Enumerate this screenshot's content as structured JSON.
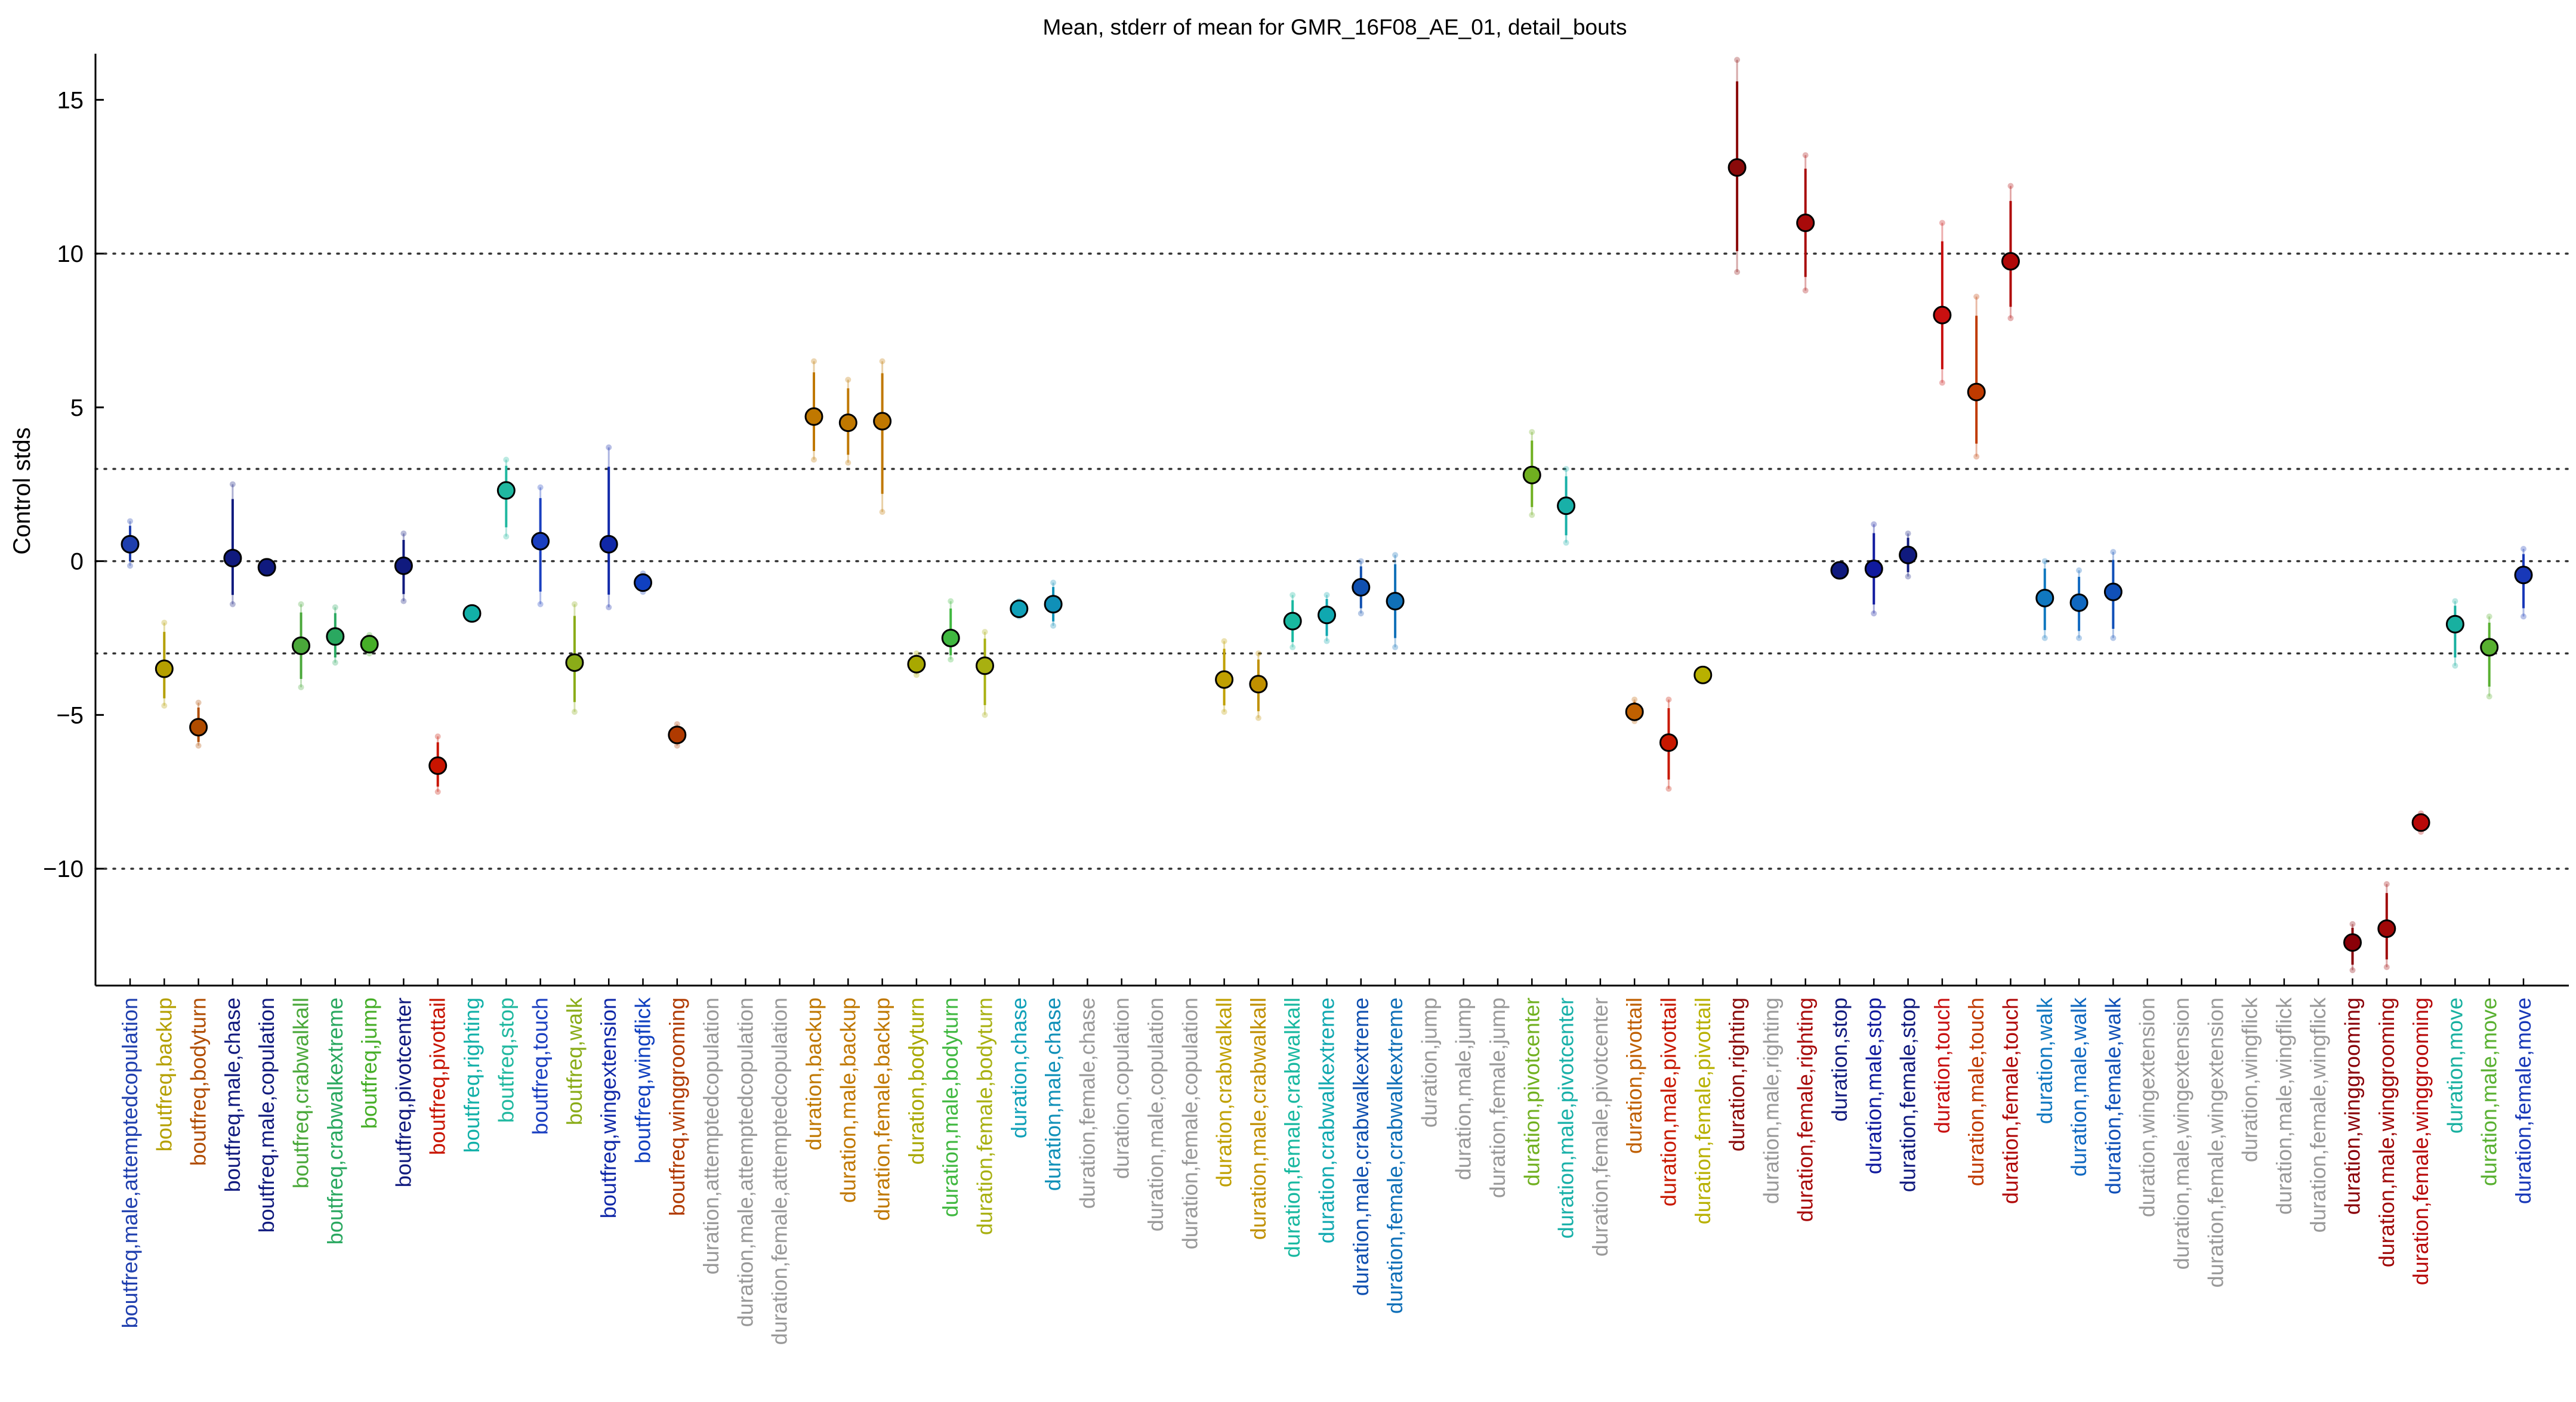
{
  "chart_data": {
    "type": "scatter",
    "title": "Mean, stderr of mean for GMR_16F08_AE_01, detail_bouts",
    "xlabel": "",
    "ylabel": "Control stds",
    "ylim": [
      -13.8,
      16.5
    ],
    "yticks": [
      -10,
      -5,
      0,
      5,
      10,
      15
    ],
    "reference_lines": [
      -10,
      -3,
      0,
      3,
      10
    ],
    "grid": false,
    "categories": [
      {
        "label": "boutfreq,male,attemptedcopulation",
        "color": "#1f3fae",
        "mean": 0.55,
        "lo": -0.15,
        "hi": 1.3
      },
      {
        "label": "boutfreq,backup",
        "color": "#b5a000",
        "mean": -3.5,
        "lo": -4.7,
        "hi": -2.0
      },
      {
        "label": "boutfreq,bodyturn",
        "color": "#b04c00",
        "mean": -5.4,
        "lo": -6.0,
        "hi": -4.6
      },
      {
        "label": "boutfreq,male,chase",
        "color": "#101a7e",
        "mean": 0.1,
        "lo": -1.4,
        "hi": 2.5
      },
      {
        "label": "boutfreq,male,copulation",
        "color": "#101a7e",
        "mean": -0.2,
        "lo": -0.4,
        "hi": 0.0
      },
      {
        "label": "boutfreq,crabwalkall",
        "color": "#4aa83a",
        "mean": -2.75,
        "lo": -4.1,
        "hi": -1.4
      },
      {
        "label": "boutfreq,crabwalkextreme",
        "color": "#2aa860",
        "mean": -2.45,
        "lo": -3.3,
        "hi": -1.5
      },
      {
        "label": "boutfreq,jump",
        "color": "#46ae28",
        "mean": -2.7,
        "lo": -3.0,
        "hi": -2.4
      },
      {
        "label": "boutfreq,pivotcenter",
        "color": "#101a7e",
        "mean": -0.15,
        "lo": -1.3,
        "hi": 0.9
      },
      {
        "label": "boutfreq,pivottail",
        "color": "#c81400",
        "mean": -6.65,
        "lo": -7.5,
        "hi": -5.7
      },
      {
        "label": "boutfreq,righting",
        "color": "#12b0a8",
        "mean": -1.7,
        "lo": -1.9,
        "hi": -1.5
      },
      {
        "label": "boutfreq,stop",
        "color": "#20b8a0",
        "mean": 2.3,
        "lo": 0.8,
        "hi": 3.3
      },
      {
        "label": "boutfreq,touch",
        "color": "#1a3fc0",
        "mean": 0.65,
        "lo": -1.4,
        "hi": 2.4
      },
      {
        "label": "boutfreq,walk",
        "color": "#8aac18",
        "mean": -3.3,
        "lo": -4.9,
        "hi": -1.4
      },
      {
        "label": "boutfreq,wingextension",
        "color": "#1028a8",
        "mean": 0.55,
        "lo": -1.5,
        "hi": 3.7
      },
      {
        "label": "boutfreq,wingflick",
        "color": "#1040c0",
        "mean": -0.7,
        "lo": -1.0,
        "hi": -0.4
      },
      {
        "label": "boutfreq,winggrooming",
        "color": "#b03a00",
        "mean": -5.65,
        "lo": -6.0,
        "hi": -5.3
      },
      {
        "label": "duration,attemptedcopulation",
        "color": "#999999",
        "mean": null,
        "lo": null,
        "hi": null
      },
      {
        "label": "duration,male,attemptedcopulation",
        "color": "#999999",
        "mean": null,
        "lo": null,
        "hi": null
      },
      {
        "label": "duration,female,attemptedcopulation",
        "color": "#999999",
        "mean": null,
        "lo": null,
        "hi": null
      },
      {
        "label": "duration,backup",
        "color": "#c07800",
        "mean": 4.7,
        "lo": 3.3,
        "hi": 6.5
      },
      {
        "label": "duration,male,backup",
        "color": "#c07800",
        "mean": 4.5,
        "lo": 3.2,
        "hi": 5.9
      },
      {
        "label": "duration,female,backup",
        "color": "#c07800",
        "mean": 4.55,
        "lo": 1.6,
        "hi": 6.5
      },
      {
        "label": "duration,bodyturn",
        "color": "#a8a800",
        "mean": -3.35,
        "lo": -3.7,
        "hi": -3.0
      },
      {
        "label": "duration,male,bodyturn",
        "color": "#40b840",
        "mean": -2.5,
        "lo": -3.2,
        "hi": -1.3
      },
      {
        "label": "duration,female,bodyturn",
        "color": "#a8b010",
        "mean": -3.4,
        "lo": -5.0,
        "hi": -2.3
      },
      {
        "label": "duration,chase",
        "color": "#10a0b8",
        "mean": -1.55,
        "lo": -1.8,
        "hi": -1.3
      },
      {
        "label": "duration,male,chase",
        "color": "#1090b8",
        "mean": -1.4,
        "lo": -2.1,
        "hi": -0.7
      },
      {
        "label": "duration,female,chase",
        "color": "#999999",
        "mean": null,
        "lo": null,
        "hi": null
      },
      {
        "label": "duration,copulation",
        "color": "#999999",
        "mean": null,
        "lo": null,
        "hi": null
      },
      {
        "label": "duration,male,copulation",
        "color": "#999999",
        "mean": null,
        "lo": null,
        "hi": null
      },
      {
        "label": "duration,female,copulation",
        "color": "#999999",
        "mean": null,
        "lo": null,
        "hi": null
      },
      {
        "label": "duration,crabwalkall",
        "color": "#c0a000",
        "mean": -3.85,
        "lo": -4.9,
        "hi": -2.6
      },
      {
        "label": "duration,male,crabwalkall",
        "color": "#c09000",
        "mean": -4.0,
        "lo": -5.1,
        "hi": -3.0
      },
      {
        "label": "duration,female,crabwalkall",
        "color": "#18b8a0",
        "mean": -1.95,
        "lo": -2.8,
        "hi": -1.1
      },
      {
        "label": "duration,crabwalkextreme",
        "color": "#10a8b0",
        "mean": -1.75,
        "lo": -2.6,
        "hi": -1.1
      },
      {
        "label": "duration,male,crabwalkextreme",
        "color": "#1050b0",
        "mean": -0.85,
        "lo": -1.7,
        "hi": 0.0
      },
      {
        "label": "duration,female,crabwalkextreme",
        "color": "#1070b8",
        "mean": -1.3,
        "lo": -2.8,
        "hi": 0.2
      },
      {
        "label": "duration,jump",
        "color": "#999999",
        "mean": null,
        "lo": null,
        "hi": null
      },
      {
        "label": "duration,male,jump",
        "color": "#999999",
        "mean": null,
        "lo": null,
        "hi": null
      },
      {
        "label": "duration,female,jump",
        "color": "#999999",
        "mean": null,
        "lo": null,
        "hi": null
      },
      {
        "label": "duration,pivotcenter",
        "color": "#70b020",
        "mean": 2.8,
        "lo": 1.5,
        "hi": 4.2
      },
      {
        "label": "duration,male,pivotcenter",
        "color": "#18b0a8",
        "mean": 1.8,
        "lo": 0.6,
        "hi": 3.0
      },
      {
        "label": "duration,female,pivotcenter",
        "color": "#999999",
        "mean": null,
        "lo": null,
        "hi": null
      },
      {
        "label": "duration,pivottail",
        "color": "#c06000",
        "mean": -4.9,
        "lo": -5.2,
        "hi": -4.5
      },
      {
        "label": "duration,male,pivottail",
        "color": "#c81800",
        "mean": -5.9,
        "lo": -7.4,
        "hi": -4.5
      },
      {
        "label": "duration,female,pivottail",
        "color": "#b8b000",
        "mean": -3.7,
        "lo": -3.9,
        "hi": -3.5
      },
      {
        "label": "duration,righting",
        "color": "#8a0a0a",
        "mean": 12.8,
        "lo": 9.4,
        "hi": 16.3
      },
      {
        "label": "duration,male,righting",
        "color": "#999999",
        "mean": null,
        "lo": null,
        "hi": null
      },
      {
        "label": "duration,female,righting",
        "color": "#a80a0a",
        "mean": 11.0,
        "lo": 8.8,
        "hi": 13.2
      },
      {
        "label": "duration,stop",
        "color": "#101a7e",
        "mean": -0.3,
        "lo": -0.5,
        "hi": -0.1
      },
      {
        "label": "duration,male,stop",
        "color": "#101a9e",
        "mean": -0.25,
        "lo": -1.7,
        "hi": 1.2
      },
      {
        "label": "duration,female,stop",
        "color": "#101a7e",
        "mean": 0.2,
        "lo": -0.5,
        "hi": 0.9
      },
      {
        "label": "duration,touch",
        "color": "#c81010",
        "mean": 8.0,
        "lo": 5.8,
        "hi": 11.0
      },
      {
        "label": "duration,male,touch",
        "color": "#c03a00",
        "mean": 5.5,
        "lo": 3.4,
        "hi": 8.6
      },
      {
        "label": "duration,female,touch",
        "color": "#b00808",
        "mean": 9.75,
        "lo": 7.9,
        "hi": 12.2
      },
      {
        "label": "duration,walk",
        "color": "#1078c0",
        "mean": -1.2,
        "lo": -2.5,
        "hi": 0.0
      },
      {
        "label": "duration,male,walk",
        "color": "#1068c0",
        "mean": -1.35,
        "lo": -2.5,
        "hi": -0.3
      },
      {
        "label": "duration,female,walk",
        "color": "#1050b8",
        "mean": -1.0,
        "lo": -2.5,
        "hi": 0.3
      },
      {
        "label": "duration,wingextension",
        "color": "#999999",
        "mean": null,
        "lo": null,
        "hi": null
      },
      {
        "label": "duration,male,wingextension",
        "color": "#999999",
        "mean": null,
        "lo": null,
        "hi": null
      },
      {
        "label": "duration,female,wingextension",
        "color": "#999999",
        "mean": null,
        "lo": null,
        "hi": null
      },
      {
        "label": "duration,wingflick",
        "color": "#999999",
        "mean": null,
        "lo": null,
        "hi": null
      },
      {
        "label": "duration,male,wingflick",
        "color": "#999999",
        "mean": null,
        "lo": null,
        "hi": null
      },
      {
        "label": "duration,female,wingflick",
        "color": "#999999",
        "mean": null,
        "lo": null,
        "hi": null
      },
      {
        "label": "duration,winggrooming",
        "color": "#8a0008",
        "mean": -12.4,
        "lo": -13.3,
        "hi": -11.8
      },
      {
        "label": "duration,male,winggrooming",
        "color": "#a00808",
        "mean": -11.95,
        "lo": -13.2,
        "hi": -10.5
      },
      {
        "label": "duration,female,winggrooming",
        "color": "#b80808",
        "mean": -8.5,
        "lo": -8.8,
        "hi": -8.2
      },
      {
        "label": "duration,move",
        "color": "#18b0a0",
        "mean": -2.05,
        "lo": -3.4,
        "hi": -1.3
      },
      {
        "label": "duration,male,move",
        "color": "#58b030",
        "mean": -2.8,
        "lo": -4.4,
        "hi": -1.8
      },
      {
        "label": "duration,female,move",
        "color": "#1838b8",
        "mean": -0.45,
        "lo": -1.8,
        "hi": 0.4
      }
    ]
  }
}
